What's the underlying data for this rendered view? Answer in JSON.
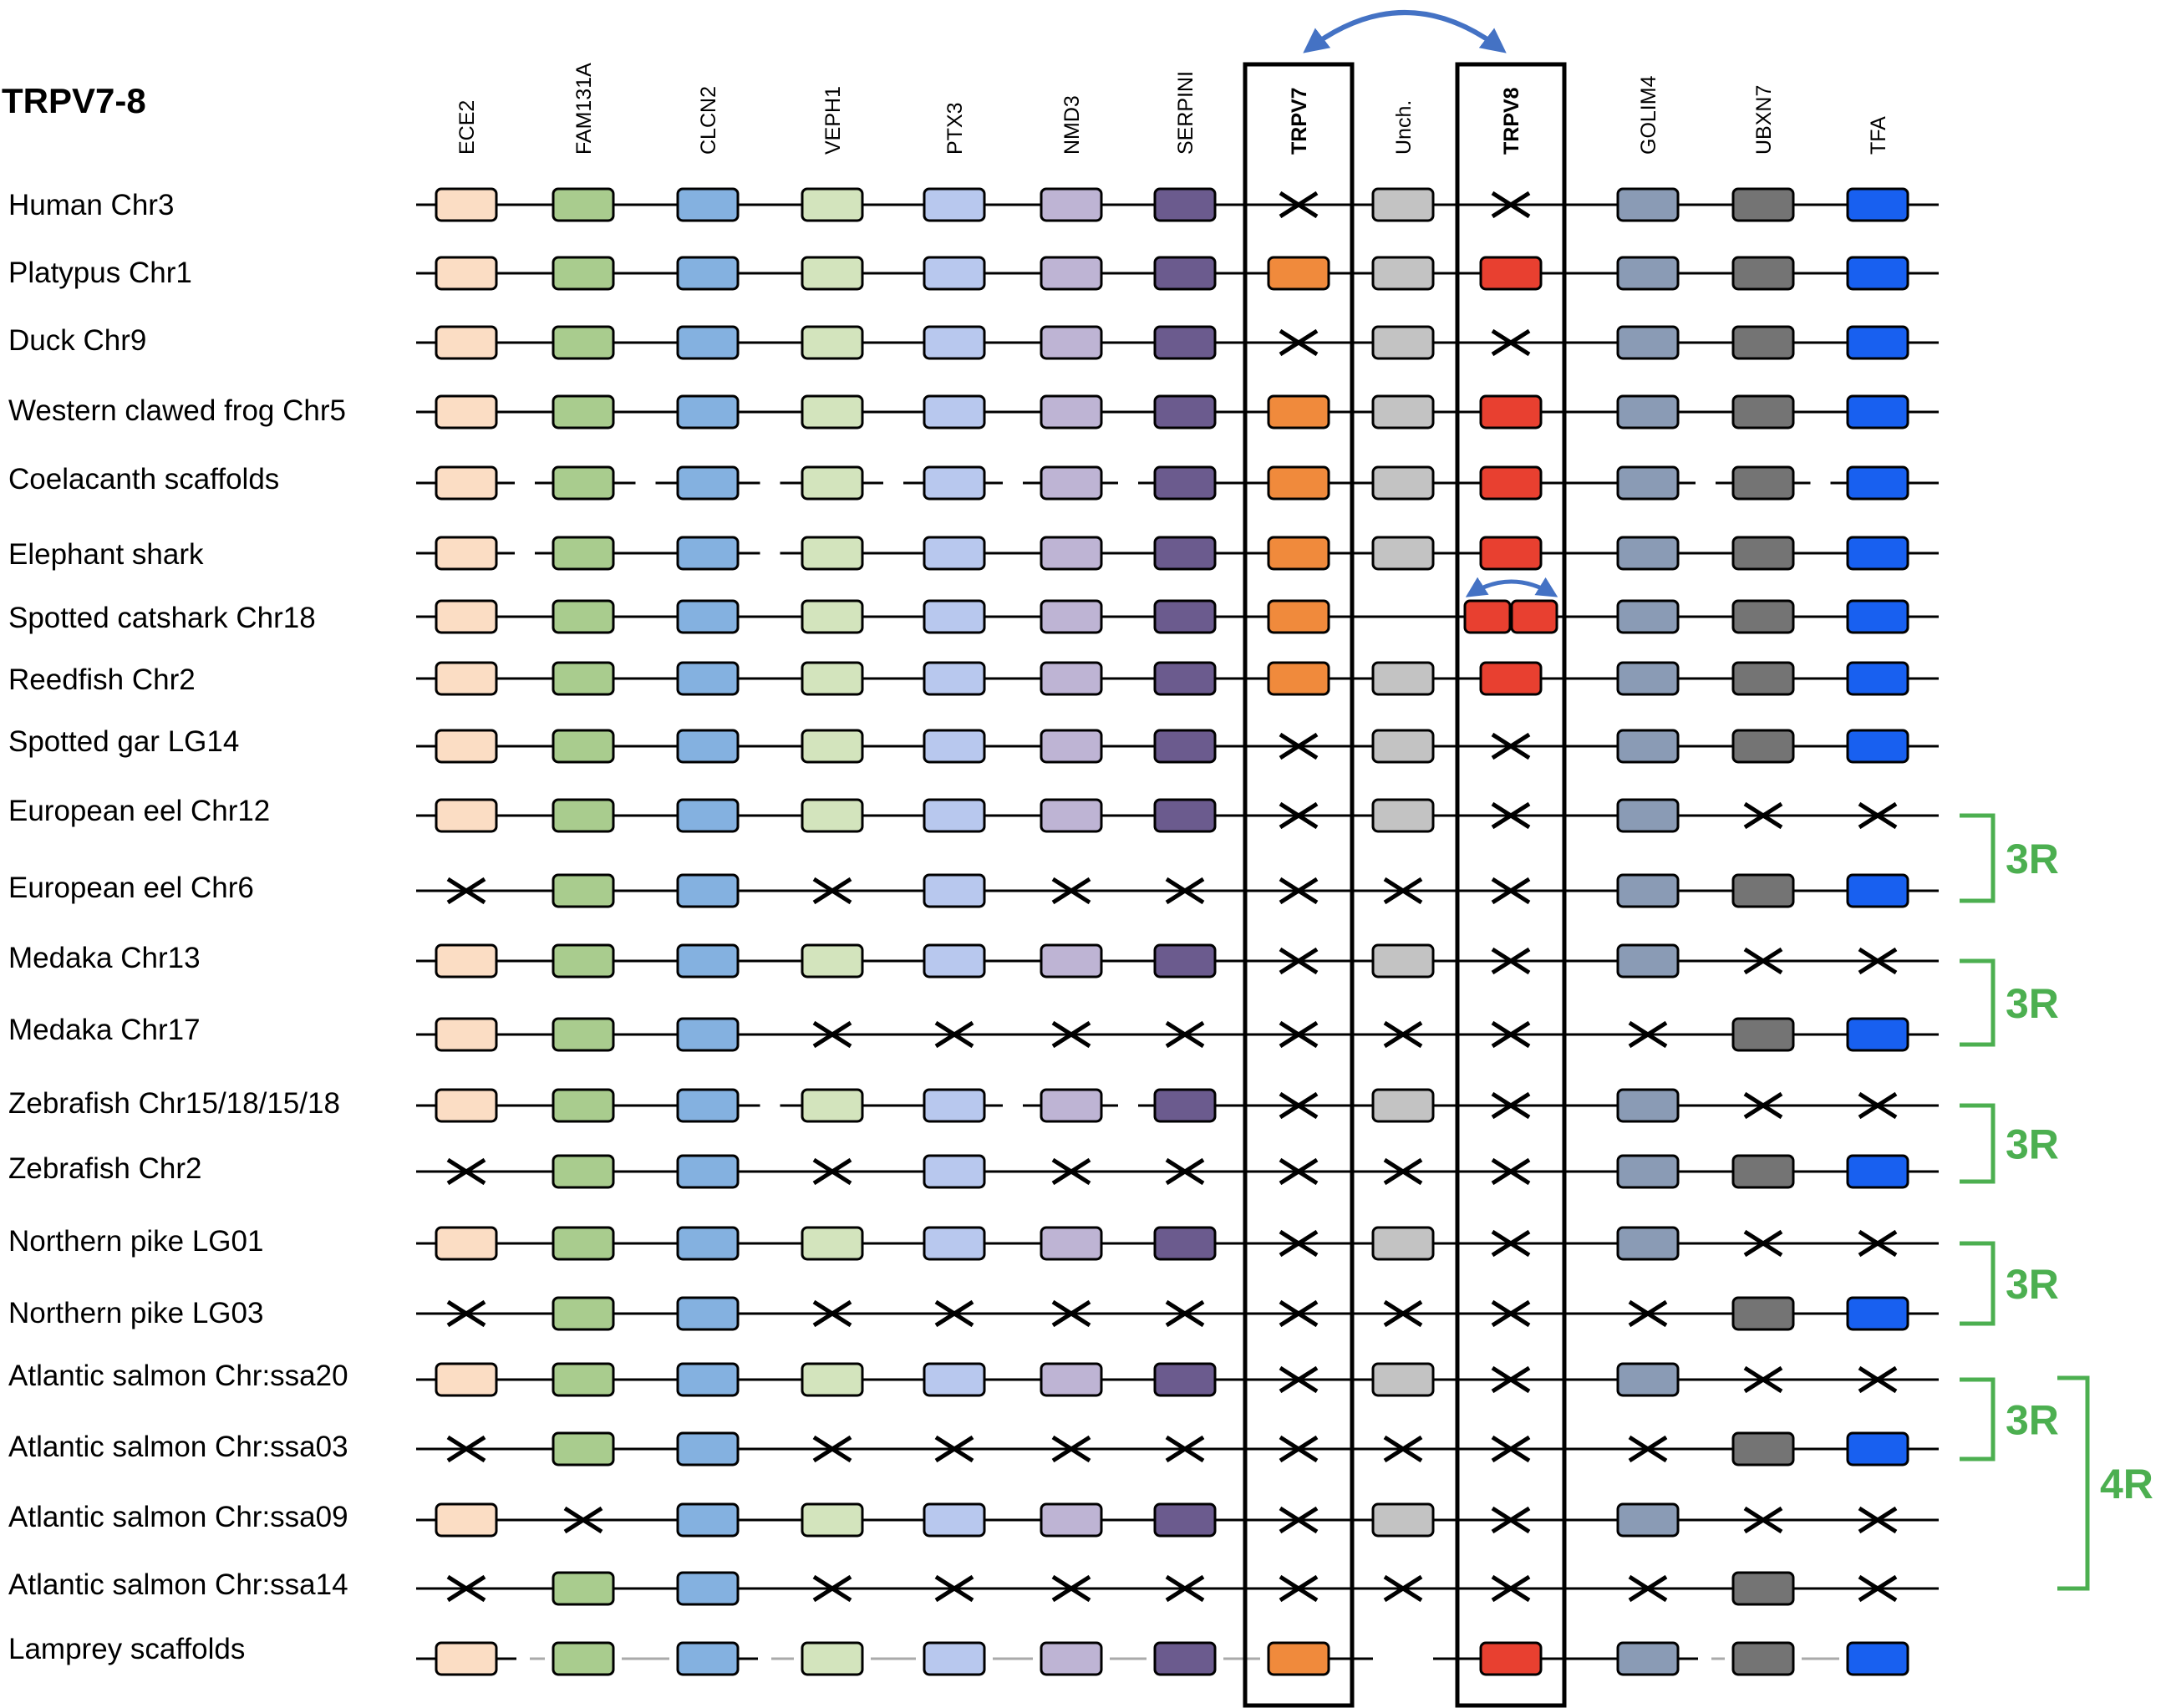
{
  "title": "TRPV7-8",
  "genes": [
    {
      "name": "ECE2",
      "color": "#FBDDC4",
      "bold": false
    },
    {
      "name": "FAM131A",
      "color": "#A9CC8E",
      "bold": false
    },
    {
      "name": "CLCN2",
      "color": "#84B1E0",
      "bold": false
    },
    {
      "name": "VEPH1",
      "color": "#D3E4BD",
      "bold": false
    },
    {
      "name": "PTX3",
      "color": "#B8C8EE",
      "bold": false
    },
    {
      "name": "NMD3",
      "color": "#BEB4D4",
      "bold": false
    },
    {
      "name": "SERPINI",
      "color": "#6B5B8E",
      "bold": false
    },
    {
      "name": "TRPV7",
      "color": "#F08A3C",
      "bold": true
    },
    {
      "name": "Unch.",
      "color": "#C3C3C3",
      "bold": false
    },
    {
      "name": "TRPV8",
      "color": "#E84030",
      "bold": true
    },
    {
      "name": "GOLIM4",
      "color": "#8A9BB5",
      "bold": false
    },
    {
      "name": "UBXN7",
      "color": "#747474",
      "bold": false
    },
    {
      "name": "TFA",
      "color": "#1860F0",
      "bold": false
    }
  ],
  "species": [
    {
      "name": "Human Chr3",
      "cells": "PPPPPPPXPXPPP",
      "line": "solid"
    },
    {
      "name": "Platypus Chr1",
      "cells": "PPPPPPPPPPPPP",
      "line": "solid"
    },
    {
      "name": "Duck Chr9",
      "cells": "PPPPPPPXPXPPP",
      "line": "solid"
    },
    {
      "name": "Western clawed frog Chr5",
      "cells": "PPPPPPPPPPPPP",
      "line": "solid"
    },
    {
      "name": "Coelacanth  scaffolds",
      "cells": "PPPPPPPPPPPPP",
      "line": "gaps",
      "breaks": [
        1,
        2,
        3,
        4,
        5,
        6,
        11,
        12
      ]
    },
    {
      "name": "Elephant shark",
      "cells": "PPPPPPPPPPPPP",
      "line": "gaps",
      "breaks": [
        1,
        3
      ]
    },
    {
      "name": "Spotted catshark Chr18",
      "cells": "PPPPPPPP-DPPP",
      "line": "solid"
    },
    {
      "name": "Reedfish Chr2",
      "cells": "PPPPPPPPPPPPP",
      "line": "solid"
    },
    {
      "name": "Spotted gar LG14",
      "cells": "PPPPPPPXPXPPP",
      "line": "solid"
    },
    {
      "name": "European eel Chr12",
      "cells": "PPPPPPPXPXPXX",
      "line": "solid"
    },
    {
      "name": "European eel Chr6",
      "cells": "XPPXPXXXXXPPP",
      "line": "solid"
    },
    {
      "name": "Medaka Chr13",
      "cells": "PPPPPPPXPXPXX",
      "line": "solid"
    },
    {
      "name": "Medaka Chr17",
      "cells": "PPPXXXXXXXXPP",
      "line": "solid"
    },
    {
      "name": "Zebrafish Chr15/18/15/18",
      "cells": "PPPPPPPXPXPXX",
      "line": "gaps",
      "breaks": [
        3,
        5,
        6
      ]
    },
    {
      "name": "Zebrafish Chr2",
      "cells": "XPPXPXXXXXPPP",
      "line": "solid"
    },
    {
      "name": "Northern pike LG01",
      "cells": "PPPPPPPXPXPXX",
      "line": "solid"
    },
    {
      "name": "Northern pike LG03",
      "cells": "XPPXXXXXXXXPP",
      "line": "solid"
    },
    {
      "name": "Atlantic salmon Chr:ssa20",
      "cells": "PPPPPPPXPXPXX",
      "line": "solid"
    },
    {
      "name": "Atlantic salmon Chr:ssa03",
      "cells": "XPPXXXXXXXXPP",
      "line": "solid"
    },
    {
      "name": "Atlantic salmon Chr:ssa09",
      "cells": "PXPPPPPXPXPXX",
      "line": "solid"
    },
    {
      "name": "Atlantic salmon Chr:ssa14",
      "cells": "XPPXXXXXXXXPX",
      "line": "solid"
    },
    {
      "name": "Lamprey  scaffolds",
      "cells": "PPPPPPPP-PPPP",
      "line": "lamprey"
    }
  ],
  "duplications": [
    {
      "rows": [
        9,
        10
      ],
      "label": "3R"
    },
    {
      "rows": [
        11,
        12
      ],
      "label": "3R"
    },
    {
      "rows": [
        13,
        14
      ],
      "label": "3R"
    },
    {
      "rows": [
        15,
        16
      ],
      "label": "3R"
    },
    {
      "rows": [
        17,
        18
      ],
      "label": "3R"
    },
    {
      "rows": [
        17,
        20
      ],
      "label": "4R"
    }
  ],
  "colors": {
    "label_green": "#4CAF50",
    "arrow_blue": "#4472C4",
    "gap_line": "#AAAAAA"
  }
}
